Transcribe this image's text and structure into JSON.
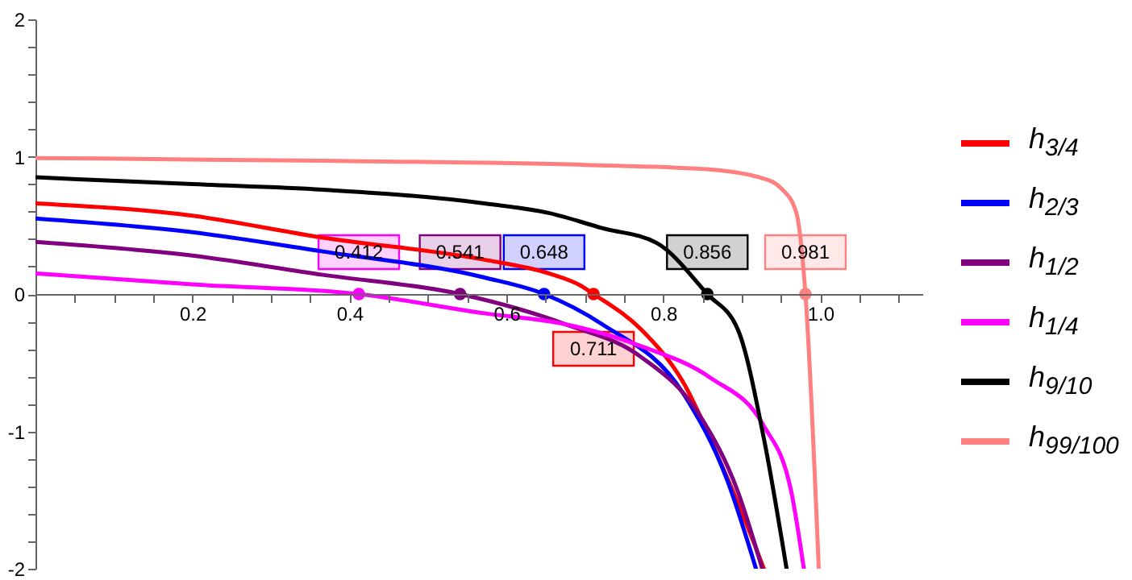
{
  "chart_data": {
    "type": "line",
    "xlim": [
      0,
      1.13
    ],
    "ylim": [
      -2,
      2
    ],
    "xticks": [
      {
        "value": 0.05,
        "label": null
      },
      {
        "value": 0.1,
        "label": null
      },
      {
        "value": 0.15,
        "label": null
      },
      0.2,
      {
        "value": 0.25,
        "label": null
      },
      {
        "value": 0.3,
        "label": null
      },
      {
        "value": 0.35,
        "label": null
      },
      0.4,
      {
        "value": 0.45,
        "label": null
      },
      {
        "value": 0.5,
        "label": null
      },
      {
        "value": 0.55,
        "label": null
      },
      0.6,
      {
        "value": 0.65,
        "label": null
      },
      {
        "value": 0.7,
        "label": null
      },
      {
        "value": 0.75,
        "label": null
      },
      0.8,
      {
        "value": 0.85,
        "label": null
      },
      {
        "value": 0.9,
        "label": null
      },
      {
        "value": 0.95,
        "label": null
      },
      {
        "value": 1,
        "label": "1.0"
      },
      {
        "value": 1.05,
        "label": null
      },
      {
        "value": 1.1,
        "label": null
      }
    ],
    "yticks": [
      -2,
      {
        "value": -1.8,
        "label": null
      },
      {
        "value": -1.6,
        "label": null
      },
      {
        "value": -1.4,
        "label": null
      },
      {
        "value": -1.2,
        "label": null
      },
      -1,
      {
        "value": -0.8,
        "label": null
      },
      {
        "value": -0.6,
        "label": null
      },
      {
        "value": -0.4,
        "label": null
      },
      {
        "value": -0.2,
        "label": null
      },
      0,
      {
        "value": 0.2,
        "label": null
      },
      {
        "value": 0.4,
        "label": null
      },
      {
        "value": 0.6,
        "label": null
      },
      {
        "value": 0.8,
        "label": null
      },
      1,
      {
        "value": 1.2,
        "label": null
      },
      {
        "value": 1.4,
        "label": null
      },
      {
        "value": 1.6,
        "label": null
      },
      {
        "value": 1.8,
        "label": null
      },
      2
    ],
    "legend": "right",
    "marker": "none",
    "line_style": "solid",
    "series": [
      {
        "name": "h$_{3/4}$",
        "color": "#ff0000",
        "x": [
          0,
          0.2,
          0.366,
          0.572,
          0.654,
          0.695,
          0.711,
          0.772,
          0.826,
          0.874,
          0.916,
          0.928
        ],
        "values": [
          0.66,
          0.57,
          0.41,
          0.25,
          0.15,
          0.06,
          0,
          -0.26,
          -0.65,
          -1.24,
          -1.82,
          -2
        ]
      },
      {
        "name": "h$_{2/3}$",
        "color": "#0000ff",
        "x": [
          0,
          0.2,
          0.366,
          0.572,
          0.648,
          0.722,
          0.826,
          0.881,
          0.918
        ],
        "values": [
          0.55,
          0.45,
          0.31,
          0.12,
          0,
          -0.22,
          -0.73,
          -1.35,
          -2
        ]
      },
      {
        "name": "h$_{1/2}$",
        "color": "#800080",
        "x": [
          0,
          0.2,
          0.366,
          0.541,
          0.675,
          0.772,
          0.846,
          0.895,
          0.926
        ],
        "values": [
          0.38,
          0.28,
          0.14,
          0,
          -0.22,
          -0.46,
          -0.88,
          -1.44,
          -2
        ]
      },
      {
        "name": "h$_{1/4}$",
        "color": "#ff00ff",
        "x": [
          0,
          0.2,
          0.412,
          0.572,
          0.675,
          0.772,
          0.86,
          0.928,
          0.963,
          0.979
        ],
        "values": [
          0.15,
          0.07,
          0,
          -0.14,
          -0.22,
          -0.38,
          -0.61,
          -0.96,
          -1.44,
          -2
        ]
      },
      {
        "name": "h$_{9/10}$",
        "color": "#000000",
        "x": [
          0,
          0.2,
          0.366,
          0.572,
          0.654,
          0.722,
          0.792,
          0.856,
          0.895,
          0.928,
          0.957
        ],
        "values": [
          0.85,
          0.8,
          0.76,
          0.66,
          0.59,
          0.48,
          0.37,
          0,
          -0.26,
          -1.05,
          -2
        ]
      },
      {
        "name": "h$_{99/100}$",
        "color": "#ff8080",
        "x": [
          0,
          0.366,
          0.7,
          0.85,
          0.928,
          0.95,
          0.969,
          0.981,
          0.998
        ],
        "values": [
          0.99,
          0.97,
          0.94,
          0.91,
          0.84,
          0.77,
          0.6,
          0,
          -2
        ]
      },
      {
        "type": "scatter",
        "marker": "circle",
        "color": "#ff00ff",
        "x": [
          0.412
        ],
        "values": [
          0
        ]
      },
      {
        "type": "scatter",
        "marker": "circle",
        "color": "#800080",
        "x": [
          0.541
        ],
        "values": [
          0
        ]
      },
      {
        "type": "scatter",
        "marker": "circle",
        "color": "#0000ff",
        "x": [
          0.648
        ],
        "values": [
          0
        ]
      },
      {
        "type": "scatter",
        "marker": "circle",
        "color": "#ff0000",
        "x": [
          0.711
        ],
        "values": [
          0
        ]
      },
      {
        "type": "scatter",
        "marker": "circle",
        "color": "#000000",
        "x": [
          0.856
        ],
        "values": [
          0
        ]
      },
      {
        "type": "scatter",
        "marker": "circle",
        "color": "#ff8080",
        "x": [
          0.981
        ],
        "values": [
          0
        ]
      }
    ],
    "annotations": [
      {
        "text": "0.412",
        "x": 0.412,
        "y": 0
      },
      {
        "text": "0.541",
        "x": 0.541,
        "y": 0
      },
      {
        "text": "0.648",
        "x": 0.648,
        "y": 0
      },
      {
        "text": "0.711",
        "x": 0.711,
        "y": 0
      },
      {
        "text": "0.856",
        "x": 0.856,
        "y": 0
      },
      {
        "text": "0.981",
        "x": 0.981,
        "y": 0
      }
    ]
  }
}
